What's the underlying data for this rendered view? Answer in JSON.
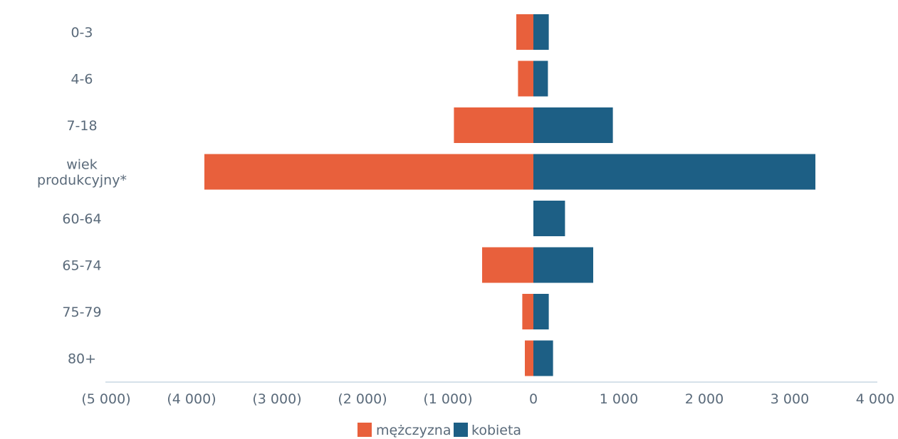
{
  "chart_data": {
    "type": "bar",
    "orientation": "horizontal",
    "stacked": "diverging",
    "title": "",
    "xlabel": "",
    "ylabel": "",
    "xlim": [
      -5000,
      4000
    ],
    "categories": [
      [
        "0-3"
      ],
      [
        "4-6"
      ],
      [
        "7-18"
      ],
      [
        "wiek",
        "produkcyjny*"
      ],
      [
        "60-64"
      ],
      [
        "65-74"
      ],
      [
        "75-79"
      ],
      [
        "80+"
      ]
    ],
    "x_ticks": [
      -5000,
      -4000,
      -3000,
      -2000,
      -1000,
      0,
      1000,
      2000,
      3000,
      4000
    ],
    "x_tick_labels": [
      "(5 000)",
      "(4 000)",
      "(3 000)",
      "(2 000)",
      "(1 000)",
      "0",
      "1 000",
      "2 000",
      "3 000",
      "4 000"
    ],
    "series": [
      {
        "name": "mężczyzna",
        "color": "#e8603c",
        "values": [
          -200,
          -180,
          -930,
          -3850,
          0,
          -600,
          -130,
          -100
        ]
      },
      {
        "name": "kobieta",
        "color": "#1d5f85",
        "values": [
          180,
          170,
          930,
          3300,
          370,
          700,
          180,
          230
        ]
      }
    ],
    "legend": {
      "position": "bottom-center"
    },
    "grid": false
  }
}
